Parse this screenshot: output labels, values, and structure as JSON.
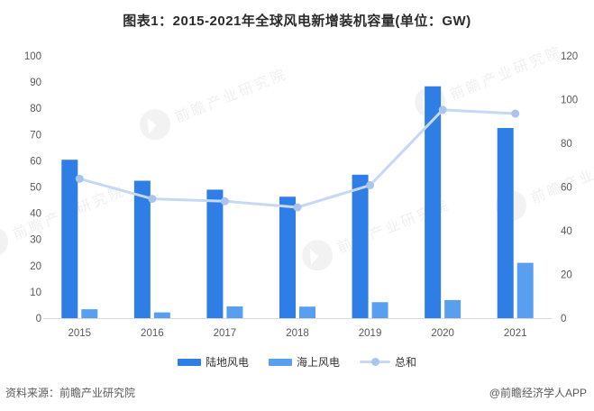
{
  "title": "图表1：2015-2021年全球风电新增装机容量(单位：GW)",
  "watermark": {
    "text": "前瞻产业研究院"
  },
  "legend": {
    "onshore_label": "陆地风电",
    "offshore_label": "海上风电",
    "total_label": "总和"
  },
  "footer": {
    "source": "资料来源：前瞻产业研究院",
    "credit": "@前瞻经济学人APP"
  },
  "colors": {
    "onshore_bar": "#2f7ee6",
    "offshore_bar": "#58a0ef",
    "total_line": "#c7d8f4",
    "total_marker": "#aac4ec",
    "axis_line": "#d9d9d9",
    "tick_text": "#595959",
    "title_text": "#2b2b2b"
  },
  "chart_data": {
    "type": "bar",
    "subtype": "grouped-bars-with-line",
    "title": "图表1：2015-2021年全球风电新增装机容量(单位：GW)",
    "categories": [
      "2015",
      "2016",
      "2017",
      "2018",
      "2019",
      "2020",
      "2021"
    ],
    "series": [
      {
        "name": "陆地风电",
        "type": "bar",
        "axis": "left",
        "color": "#2f7ee6",
        "values": [
          60.4,
          52.4,
          49.0,
          46.3,
          54.7,
          88.4,
          72.5
        ]
      },
      {
        "name": "海上风电",
        "type": "bar",
        "axis": "left",
        "color": "#58a0ef",
        "values": [
          3.4,
          2.2,
          4.5,
          4.4,
          6.1,
          6.9,
          21.1
        ]
      },
      {
        "name": "总和",
        "type": "line",
        "axis": "right",
        "color": "#c7d8f4",
        "marker_color": "#aac4ec",
        "values": [
          63.8,
          54.6,
          53.5,
          50.7,
          60.8,
          95.3,
          93.6
        ]
      }
    ],
    "left_axis": {
      "min": 0,
      "max": 100,
      "step": 10
    },
    "right_axis": {
      "min": 0,
      "max": 120,
      "step": 20
    },
    "unit": "GW",
    "grid": false,
    "legend_position": "bottom"
  }
}
